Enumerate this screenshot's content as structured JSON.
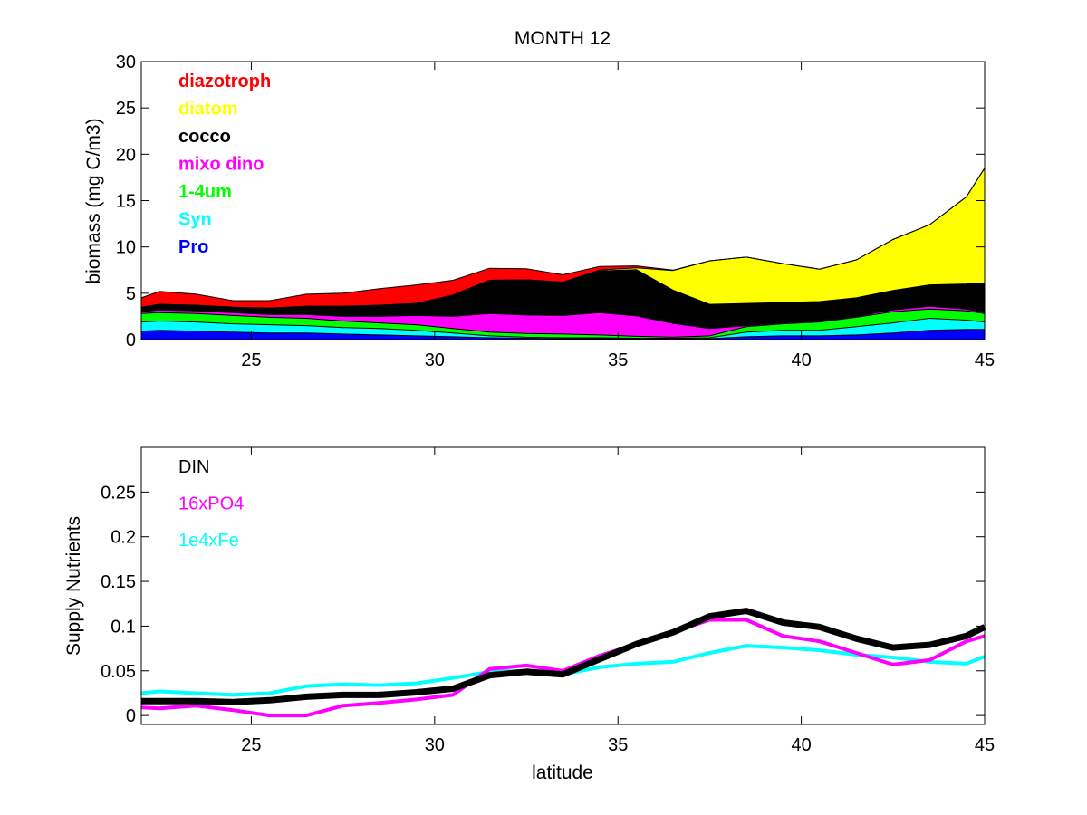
{
  "chart_data": [
    {
      "type": "area",
      "stacked": true,
      "title": "MONTH 12",
      "xlabel": "",
      "ylabel": "biomass (mg C/m3)",
      "xlim": [
        22,
        45
      ],
      "ylim": [
        0,
        30
      ],
      "xticks": [
        25,
        30,
        35,
        40,
        45
      ],
      "yticks": [
        0,
        5,
        10,
        15,
        20,
        25,
        30
      ],
      "grid": false,
      "legend_position": "top-left",
      "x": [
        22,
        22.5,
        23.5,
        24.5,
        25.5,
        26.5,
        27.5,
        28.5,
        29.5,
        30.5,
        31.5,
        32.5,
        33.5,
        34.5,
        35.5,
        36.5,
        37.5,
        38.5,
        39.5,
        40.5,
        41.5,
        42.5,
        43.5,
        44.5,
        45
      ],
      "series": [
        {
          "name": "Pro",
          "color": "#0000ff",
          "values": [
            0.9,
            1.0,
            0.9,
            0.8,
            0.7,
            0.7,
            0.6,
            0.5,
            0.4,
            0.3,
            0.2,
            0.15,
            0.1,
            0.1,
            0.1,
            0.1,
            0.1,
            0.3,
            0.4,
            0.4,
            0.5,
            0.7,
            1.0,
            1.1,
            1.1
          ]
        },
        {
          "name": "Syn",
          "color": "#00ffff",
          "values": [
            1.0,
            1.0,
            1.0,
            0.9,
            0.9,
            0.8,
            0.7,
            0.7,
            0.6,
            0.4,
            0.2,
            0.1,
            0.1,
            0.1,
            0.05,
            0.05,
            0.1,
            0.5,
            0.6,
            0.6,
            0.9,
            1.1,
            1.3,
            1.0,
            0.8
          ]
        },
        {
          "name": "1-4um",
          "color": "#00ff00",
          "values": [
            0.9,
            0.9,
            0.9,
            0.9,
            0.8,
            0.8,
            0.7,
            0.6,
            0.6,
            0.5,
            0.4,
            0.4,
            0.4,
            0.3,
            0.2,
            0.1,
            0.2,
            0.6,
            0.7,
            0.9,
            1.0,
            1.2,
            1.0,
            1.0,
            0.9
          ]
        },
        {
          "name": "mixo dino",
          "color": "#ff00ff",
          "values": [
            0.2,
            0.3,
            0.3,
            0.3,
            0.3,
            0.4,
            0.5,
            0.7,
            1.0,
            1.3,
            2.0,
            2.0,
            2.0,
            2.4,
            2.2,
            1.5,
            0.8,
            0.1,
            0.1,
            0.1,
            0.1,
            0.2,
            0.3,
            0.2,
            0.1
          ]
        },
        {
          "name": "cocco",
          "color": "#000000",
          "values": [
            0.5,
            0.6,
            0.6,
            0.6,
            0.7,
            0.9,
            1.1,
            1.2,
            1.3,
            2.3,
            3.6,
            3.8,
            3.6,
            4.5,
            5.0,
            3.6,
            2.6,
            2.4,
            2.2,
            2.1,
            2.0,
            2.1,
            2.3,
            2.7,
            3.2
          ]
        },
        {
          "name": "diatom",
          "color": "#ffff00",
          "values": [
            0.0,
            0.0,
            0.0,
            0.0,
            0.0,
            0.0,
            0.0,
            0.0,
            0.0,
            0.0,
            0.0,
            0.0,
            0.0,
            0.1,
            0.2,
            2.1,
            4.7,
            5.0,
            4.2,
            3.5,
            4.1,
            5.5,
            6.5,
            9.4,
            12.4
          ]
        },
        {
          "name": "diazotroph",
          "color": "#ff0000",
          "values": [
            1.0,
            1.4,
            1.2,
            0.7,
            0.8,
            1.3,
            1.4,
            1.8,
            2.0,
            1.6,
            1.3,
            1.2,
            0.8,
            0.4,
            0.2,
            0.05,
            0.0,
            0.0,
            0.0,
            0.0,
            0.0,
            0.0,
            0.0,
            0.0,
            0.0
          ]
        }
      ]
    },
    {
      "type": "line",
      "title": "",
      "xlabel": "latitude",
      "ylabel": "Supply Nutrients",
      "xlim": [
        22,
        45
      ],
      "ylim": [
        -0.01,
        0.3
      ],
      "xticks": [
        25,
        30,
        35,
        40,
        45
      ],
      "yticks": [
        0,
        0.05,
        0.1,
        0.15,
        0.2,
        0.25
      ],
      "ytick_labels": [
        "0",
        "0.05",
        "0.1",
        "0.15",
        "0.2",
        "0.25"
      ],
      "grid": false,
      "legend_position": "top-left",
      "x": [
        22,
        22.5,
        23.5,
        24.5,
        25.5,
        26.5,
        27.5,
        28.5,
        29.5,
        30.5,
        31.5,
        32.5,
        33.5,
        34.5,
        35.5,
        36.5,
        37.5,
        38.5,
        39.5,
        40.5,
        41.5,
        42.5,
        43.5,
        44.5,
        45
      ],
      "series": [
        {
          "name": "DIN",
          "color": "#000000",
          "values": [
            0.016,
            0.016,
            0.016,
            0.015,
            0.017,
            0.021,
            0.023,
            0.023,
            0.026,
            0.03,
            0.045,
            0.049,
            0.046,
            0.063,
            0.08,
            0.093,
            0.111,
            0.117,
            0.104,
            0.099,
            0.086,
            0.076,
            0.079,
            0.089,
            0.099
          ]
        },
        {
          "name": "16xPO4",
          "color": "#ff00ff",
          "values": [
            0.009,
            0.008,
            0.011,
            0.006,
            0.0,
            0.0,
            0.011,
            0.014,
            0.018,
            0.023,
            0.052,
            0.056,
            0.05,
            0.067,
            0.08,
            0.093,
            0.107,
            0.107,
            0.089,
            0.083,
            0.07,
            0.057,
            0.062,
            0.083,
            0.089
          ]
        },
        {
          "name": "1e4xFe",
          "color": "#00ffff",
          "values": [
            0.025,
            0.027,
            0.025,
            0.023,
            0.025,
            0.033,
            0.035,
            0.034,
            0.036,
            0.042,
            0.049,
            0.05,
            0.046,
            0.054,
            0.058,
            0.06,
            0.07,
            0.078,
            0.076,
            0.073,
            0.068,
            0.065,
            0.06,
            0.058,
            0.066
          ]
        }
      ]
    }
  ]
}
